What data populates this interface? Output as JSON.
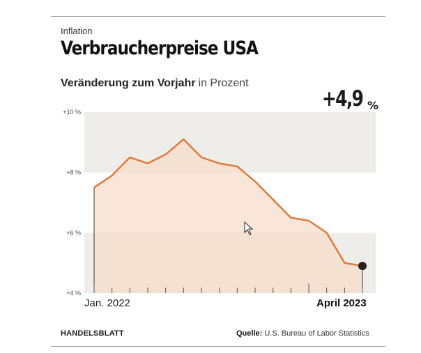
{
  "header": {
    "kicker": "Inflation",
    "title": "Verbraucherpreise USA",
    "subtitle_bold": "Veränderung zum Vorjahr",
    "subtitle_unit": "in Prozent",
    "highlight_value": "+4,9",
    "highlight_unit": "%"
  },
  "footer": {
    "brand": "HANDELSBLATT",
    "source_label": "Quelle:",
    "source_text": "U.S. Bureau of Labor Statistics"
  },
  "colors": {
    "line": "#e07a3c",
    "area_fill": "#f6dcc8",
    "band": "#efedea",
    "endpoint": "#2b2118"
  },
  "chart_data": {
    "type": "area",
    "x": [
      "2022-01",
      "2022-02",
      "2022-03",
      "2022-04",
      "2022-05",
      "2022-06",
      "2022-07",
      "2022-08",
      "2022-09",
      "2022-10",
      "2022-11",
      "2022-12",
      "2023-01",
      "2023-02",
      "2023-03",
      "2023-04"
    ],
    "values": [
      7.5,
      7.9,
      8.5,
      8.3,
      8.6,
      9.1,
      8.5,
      8.3,
      8.2,
      7.7,
      7.1,
      6.5,
      6.4,
      6.0,
      5.0,
      4.9
    ],
    "xlabel_start": "Jan. 2022",
    "xlabel_end": "April 2023",
    "yticks": [
      {
        "value": 10,
        "label": "+10 %"
      },
      {
        "value": 8,
        "label": "+8 %"
      },
      {
        "value": 6,
        "label": "+6 %"
      },
      {
        "value": 4,
        "label": "+4 %"
      }
    ],
    "ylim": [
      4,
      10
    ],
    "bands": [
      [
        8,
        10
      ],
      [
        4,
        6
      ]
    ],
    "highlight_last_point": true
  }
}
